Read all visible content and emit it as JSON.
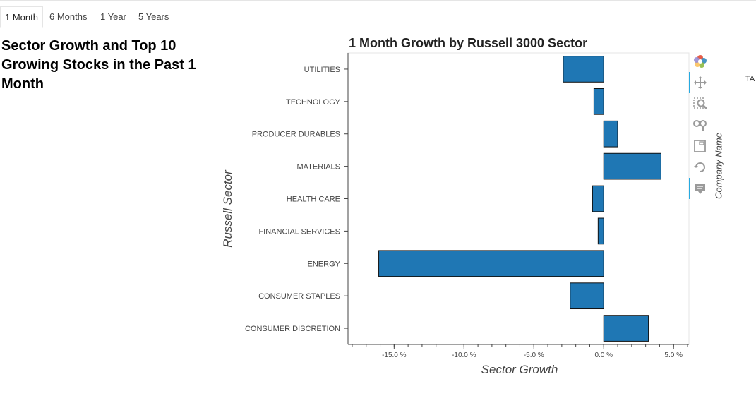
{
  "tabs": [
    {
      "label": "1 Month",
      "active": true
    },
    {
      "label": "6 Months",
      "active": false
    },
    {
      "label": "1 Year",
      "active": false
    },
    {
      "label": "5 Years",
      "active": false
    }
  ],
  "panel": {
    "title": "Sector Growth and Top 10 Growing Stocks in the Past 1 Month"
  },
  "side": {
    "company_label": "Company Name",
    "cut_text": "TA"
  },
  "toolbar": {
    "tools": [
      "bokeh-logo-icon",
      "pan-icon",
      "box-zoom-icon",
      "wheel-zoom-icon",
      "save-icon",
      "reset-icon",
      "hover-icon"
    ]
  },
  "colors": {
    "bar": "#1f77b4",
    "bar_outline": "#111111",
    "tool_active": "#26aae1"
  },
  "chart_data": {
    "type": "bar",
    "orientation": "horizontal",
    "title": "1 Month Growth by Russell 3000 Sector",
    "xlabel": "Sector Growth",
    "ylabel": "Russell Sector",
    "categories": [
      "UTILITIES",
      "TECHNOLOGY",
      "PRODUCER DURABLES",
      "MATERIALS",
      "HEALTH CARE",
      "FINANCIAL SERVICES",
      "ENERGY",
      "CONSUMER STAPLES",
      "CONSUMER DISCRETION"
    ],
    "values": [
      -2.9,
      -0.7,
      1.0,
      4.1,
      -0.8,
      -0.4,
      -16.1,
      -2.4,
      3.2
    ],
    "xlim": [
      -18.3,
      6.1
    ],
    "xticks": [
      -15,
      -10,
      -5,
      0,
      5
    ],
    "xtick_labels": [
      "-15.0 %",
      "-10.0 %",
      "-5.0 %",
      "0.0 %",
      "5.0 %"
    ],
    "grid": false,
    "legend": "none"
  }
}
